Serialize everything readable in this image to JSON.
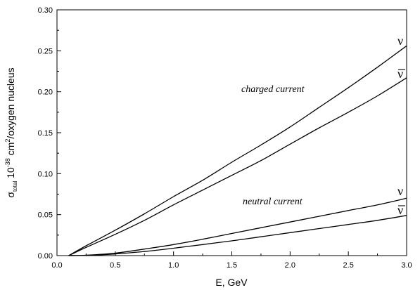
{
  "chart_data": {
    "type": "line",
    "title": "",
    "xlabel": "E, GeV",
    "ylabel": {
      "sigma": "σ",
      "subscript": "total",
      "unit_prefix": "10",
      "exp_a": "-38",
      "unit_mid": "cm",
      "exp_b": "2",
      "unit_suffix": "/oxygen nucleus"
    },
    "xlim": [
      0.0,
      3.0
    ],
    "ylim": [
      0.0,
      0.3
    ],
    "x_ticks": [
      "0.0",
      "0.5",
      "1.0",
      "1.5",
      "2.0",
      "2.5",
      "3.0"
    ],
    "y_ticks": [
      "0.00",
      "0.05",
      "0.10",
      "0.15",
      "0.20",
      "0.25",
      "0.30"
    ],
    "grid": false,
    "annotations": {
      "charged": "charged current",
      "neutral": "neutral current"
    },
    "series_labels": {
      "nu": "ν",
      "nubar": "ν"
    },
    "series": [
      {
        "x": [
          0.1,
          0.25,
          0.5,
          0.75,
          1.0,
          1.25,
          1.5,
          1.75,
          2.0,
          2.25,
          2.5,
          2.75,
          3.0
        ],
        "values": [
          0.0,
          0.012,
          0.031,
          0.051,
          0.072,
          0.092,
          0.114,
          0.135,
          0.157,
          0.181,
          0.205,
          0.23,
          0.256
        ]
      },
      {
        "x": [
          0.1,
          0.25,
          0.5,
          0.75,
          1.0,
          1.25,
          1.5,
          1.75,
          2.0,
          2.25,
          2.5,
          2.75,
          3.0
        ],
        "values": [
          0.0,
          0.01,
          0.026,
          0.043,
          0.062,
          0.08,
          0.098,
          0.116,
          0.136,
          0.156,
          0.175,
          0.195,
          0.217
        ]
      },
      {
        "x": [
          0.1,
          0.25,
          0.5,
          0.75,
          1.0,
          1.25,
          1.5,
          1.75,
          2.0,
          2.25,
          2.5,
          2.75,
          3.0
        ],
        "values": [
          0.0,
          0.0005,
          0.003,
          0.008,
          0.0135,
          0.02,
          0.027,
          0.034,
          0.041,
          0.048,
          0.055,
          0.062,
          0.07
        ]
      },
      {
        "x": [
          0.1,
          0.25,
          0.5,
          0.75,
          1.0,
          1.25,
          1.5,
          1.75,
          2.0,
          2.25,
          2.5,
          2.75,
          3.0
        ],
        "values": [
          0.0,
          0.0003,
          0.002,
          0.005,
          0.009,
          0.0135,
          0.018,
          0.023,
          0.028,
          0.033,
          0.038,
          0.043,
          0.049
        ]
      }
    ]
  }
}
